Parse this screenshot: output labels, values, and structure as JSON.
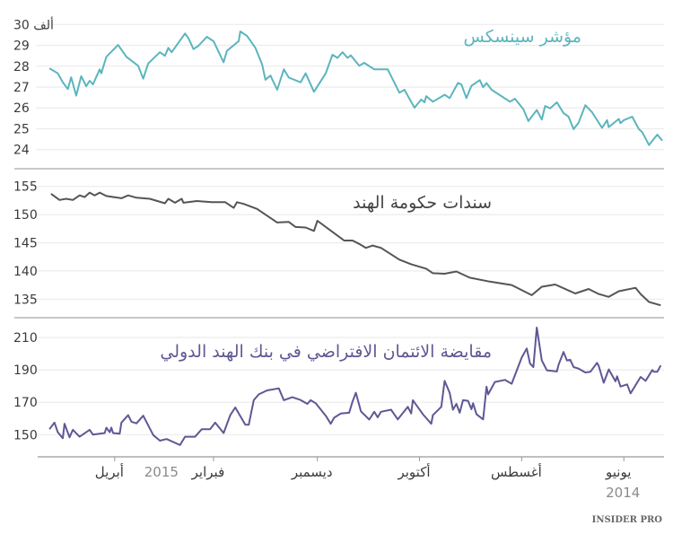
{
  "chart_data": [
    {
      "type": "line",
      "title": "مؤشر سينسكس",
      "color": "#5bb5bd",
      "ylim": [
        24,
        30
      ],
      "yticks": [
        "24",
        "25",
        "26",
        "27",
        "28",
        "29",
        "30 ألف"
      ],
      "ytick_values": [
        24,
        25,
        26,
        27,
        28,
        29,
        30
      ],
      "grid": true,
      "series": [
        {
          "x": [
            "2014-05-09",
            "2014-05-12",
            "2014-05-17",
            "2014-05-21",
            "2014-05-23",
            "2014-05-27",
            "2014-06-01",
            "2014-06-03",
            "2014-06-04",
            "2014-06-10",
            "2014-06-11",
            "2014-06-14",
            "2014-06-20",
            "2014-06-24",
            "2014-06-28",
            "2014-07-01",
            "2014-07-04",
            "2014-07-07",
            "2014-07-11",
            "2014-07-15",
            "2014-07-18",
            "2014-07-20",
            "2014-07-23",
            "2014-07-28",
            "2014-07-31",
            "2014-08-05",
            "2014-08-08",
            "2014-08-19",
            "2014-08-22",
            "2014-08-24",
            "2014-08-26",
            "2014-08-31",
            "2014-09-03",
            "2014-09-06",
            "2014-09-08",
            "2014-09-13",
            "2014-09-16",
            "2014-09-23",
            "2014-09-27",
            "2014-09-28",
            "2014-09-30",
            "2014-10-04",
            "2014-10-10",
            "2014-10-13",
            "2014-10-20",
            "2014-10-28",
            "2014-11-03",
            "2014-11-06",
            "2014-11-11",
            "2014-11-13",
            "2014-11-16",
            "2014-11-19",
            "2014-11-22",
            "2014-11-26",
            "2014-12-03",
            "2014-12-08",
            "2014-12-11",
            "2014-12-18",
            "2014-12-21",
            "2014-12-25",
            "2014-12-29",
            "2015-01-01",
            "2015-01-03",
            "2015-01-07",
            "2015-01-12",
            "2015-01-16",
            "2015-01-17",
            "2015-01-24",
            "2015-01-26",
            "2015-02-01",
            "2015-02-05",
            "2015-02-10",
            "2015-02-13",
            "2015-02-16",
            "2015-02-18",
            "2015-02-26",
            "2015-02-28",
            "2015-03-02",
            "2015-03-05",
            "2015-03-12",
            "2015-03-15",
            "2015-03-18",
            "2015-03-25",
            "2015-03-30",
            "2015-04-06",
            "2015-04-09",
            "2015-04-10",
            "2015-04-14",
            "2015-04-16",
            "2015-04-18",
            "2015-04-21",
            "2015-04-24",
            "2015-04-27",
            "2015-04-29",
            "2015-05-02",
            "2015-05-05",
            "2015-05-10"
          ],
          "y": [
            24.43,
            24.72,
            24.22,
            24.84,
            24.98,
            25.58,
            25.41,
            25.27,
            25.47,
            25.08,
            25.41,
            25.04,
            25.8,
            26.13,
            25.29,
            24.98,
            25.58,
            25.75,
            26.27,
            25.98,
            26.09,
            25.44,
            25.9,
            25.37,
            25.94,
            26.44,
            26.3,
            26.87,
            27.19,
            26.99,
            27.33,
            27.06,
            26.47,
            27.12,
            27.2,
            26.47,
            26.63,
            26.3,
            26.56,
            26.27,
            26.4,
            26.01,
            26.87,
            26.73,
            27.85,
            27.85,
            28.16,
            28.02,
            28.52,
            28.4,
            28.67,
            28.4,
            28.55,
            27.66,
            26.77,
            27.66,
            27.23,
            27.45,
            27.85,
            26.87,
            27.55,
            27.35,
            28.09,
            28.88,
            29.45,
            29.67,
            29.2,
            28.74,
            28.19,
            29.2,
            29.41,
            28.98,
            28.82,
            29.34,
            29.57,
            28.67,
            28.88,
            28.5,
            28.67,
            28.13,
            27.4,
            28.02,
            28.45,
            29.02,
            28.45,
            27.66,
            27.85,
            27.13,
            27.3,
            27.04,
            27.52,
            26.59,
            27.47,
            26.9,
            27.23,
            27.66,
            27.9
          ]
        }
      ]
    },
    {
      "type": "line",
      "title": "سندات حكومة الهند",
      "color": "#555555",
      "ylim": [
        135,
        155
      ],
      "yticks": [
        "135",
        "140",
        "145",
        "150",
        "155"
      ],
      "ytick_values": [
        135,
        140,
        145,
        150,
        155
      ],
      "grid": true,
      "series": [
        {
          "x": [
            "2014-05-10",
            "2014-05-17",
            "2014-05-22",
            "2014-05-25",
            "2014-06-04",
            "2014-06-10",
            "2014-06-16",
            "2014-06-22",
            "2014-06-30",
            "2014-07-12",
            "2014-07-20",
            "2014-07-26",
            "2014-08-07",
            "2014-08-20",
            "2014-09-01",
            "2014-09-09",
            "2014-09-16",
            "2014-09-23",
            "2014-09-27",
            "2014-10-06",
            "2014-10-13",
            "2014-10-24",
            "2014-10-29",
            "2014-11-02",
            "2014-11-06",
            "2014-11-10",
            "2014-11-15",
            "2014-12-01",
            "2014-12-03",
            "2014-12-08",
            "2014-12-14",
            "2014-12-18",
            "2014-12-25",
            "2015-01-06",
            "2015-01-14",
            "2015-01-18",
            "2015-01-20",
            "2015-01-25",
            "2015-02-02",
            "2015-02-11",
            "2015-02-19",
            "2015-02-20",
            "2015-02-24",
            "2015-02-28",
            "2015-03-02",
            "2015-03-11",
            "2015-03-19",
            "2015-03-24",
            "2015-03-28",
            "2015-04-06",
            "2015-04-10",
            "2015-04-13",
            "2015-04-16",
            "2015-04-19",
            "2015-04-22",
            "2015-04-26",
            "2015-04-30",
            "2015-05-04",
            "2015-05-09"
          ],
          "y": [
            133.9,
            134.5,
            135.9,
            137.0,
            136.4,
            135.4,
            135.9,
            136.8,
            136.0,
            137.6,
            137.2,
            135.7,
            137.5,
            138.1,
            138.8,
            139.9,
            139.5,
            139.6,
            140.4,
            141.2,
            142.0,
            144.1,
            144.5,
            144.1,
            144.8,
            145.4,
            145.4,
            148.9,
            147.1,
            147.7,
            147.8,
            148.7,
            148.6,
            151.0,
            151.9,
            152.2,
            151.2,
            152.2,
            152.2,
            152.4,
            152.1,
            152.8,
            152.1,
            152.8,
            152.0,
            152.8,
            153.0,
            153.4,
            152.9,
            153.3,
            153.9,
            153.4,
            153.9,
            153.1,
            153.4,
            152.6,
            152.8,
            152.6,
            153.7
          ]
        }
      ]
    },
    {
      "type": "line",
      "title": "مقايضة الائتمان الافتراضي في بنك الهند الدولي",
      "color": "#5e5894",
      "ylim": [
        150,
        210
      ],
      "yticks": [
        "150",
        "170",
        "190",
        "210"
      ],
      "ytick_values": [
        150,
        170,
        190,
        210
      ],
      "grid": true,
      "series": [
        {
          "x": [
            "2014-05-10",
            "2014-05-12",
            "2014-05-14",
            "2014-05-15",
            "2014-05-19",
            "2014-05-22",
            "2014-05-28",
            "2014-05-30",
            "2014-06-03",
            "2014-06-05",
            "2014-06-06",
            "2014-06-10",
            "2014-06-13",
            "2014-06-16",
            "2014-06-17",
            "2014-06-21",
            "2014-06-24",
            "2014-06-28",
            "2014-07-01",
            "2014-07-03",
            "2014-07-05",
            "2014-07-07",
            "2014-07-10",
            "2014-07-11",
            "2014-07-17",
            "2014-07-20",
            "2014-07-23",
            "2014-07-25",
            "2014-07-27",
            "2014-07-29",
            "2014-08-01",
            "2014-08-07",
            "2014-08-11",
            "2014-08-17",
            "2014-08-21",
            "2014-08-22",
            "2014-08-24",
            "2014-08-28",
            "2014-08-30",
            "2014-08-31",
            "2014-09-02",
            "2014-09-05",
            "2014-09-07",
            "2014-09-09",
            "2014-09-11",
            "2014-09-13",
            "2014-09-16",
            "2014-09-18",
            "2014-09-23",
            "2014-09-24",
            "2014-09-29",
            "2014-10-05",
            "2014-10-06",
            "2014-10-08",
            "2014-10-14",
            "2014-10-18",
            "2014-10-24",
            "2014-10-26",
            "2014-10-28",
            "2014-10-31",
            "2014-11-05",
            "2014-11-08",
            "2014-11-10",
            "2014-11-12",
            "2014-11-17",
            "2014-11-21",
            "2014-11-23",
            "2014-11-26",
            "2014-12-02",
            "2014-12-05",
            "2014-12-07",
            "2014-12-11",
            "2014-12-16",
            "2014-12-21",
            "2014-12-24",
            "2014-12-31",
            "2015-01-05",
            "2015-01-08",
            "2015-01-11",
            "2015-01-13",
            "2015-01-19",
            "2015-01-22",
            "2015-01-26",
            "2015-01-31",
            "2015-02-03",
            "2015-02-08",
            "2015-02-12",
            "2015-02-18",
            "2015-02-21",
            "2015-03-01",
            "2015-03-05",
            "2015-03-09",
            "2015-03-15",
            "2015-03-19",
            "2015-03-22",
            "2015-03-24",
            "2015-03-28",
            "2015-03-29",
            "2015-04-02",
            "2015-04-03",
            "2015-04-04",
            "2015-04-06",
            "2015-04-07",
            "2015-04-14",
            "2015-04-16",
            "2015-04-22",
            "2015-04-26",
            "2015-04-28",
            "2015-05-01",
            "2015-05-02",
            "2015-05-05",
            "2015-05-07",
            "2015-05-10"
          ],
          "y": [
            192.7,
            188.8,
            188.8,
            189.9,
            183.2,
            185.6,
            175.5,
            181.0,
            179.7,
            186.0,
            182.9,
            190.3,
            182.0,
            192.5,
            194.3,
            188.8,
            188.4,
            190.8,
            191.7,
            196.2,
            195.8,
            201.0,
            193.0,
            189.0,
            189.7,
            195.8,
            216.1,
            191.7,
            193.9,
            203.2,
            197.6,
            181.4,
            183.8,
            182.5,
            174.9,
            179.6,
            159.4,
            162.6,
            169.4,
            165.7,
            170.9,
            171.3,
            163.5,
            169.0,
            165.4,
            175.9,
            183.2,
            167.2,
            162.0,
            156.7,
            162.6,
            171.3,
            163.1,
            167.2,
            159.4,
            165.4,
            164.1,
            160.7,
            164.1,
            159.3,
            164.4,
            175.9,
            170.5,
            163.5,
            163.1,
            160.4,
            156.7,
            161.7,
            169.4,
            171.3,
            169.0,
            171.4,
            173.1,
            171.3,
            178.6,
            177.3,
            174.9,
            171.3,
            156.1,
            156.1,
            166.8,
            162.0,
            151.0,
            157.4,
            153.4,
            153.4,
            148.7,
            148.7,
            143.6,
            147.3,
            146.3,
            149.7,
            161.7,
            157.0,
            158.0,
            162.0,
            157.4,
            150.6,
            151.0,
            154.3,
            151.5,
            154.3,
            151.0,
            150.0,
            153.0,
            148.7,
            153.0,
            148.4,
            156.7,
            147.8,
            151.5,
            157.4,
            153.4
          ]
        }
      ]
    }
  ],
  "x_axis": {
    "direction": "right-to-left",
    "xlim": [
      "2014-05-08",
      "2015-05-17"
    ],
    "ticks": [
      {
        "date": "2014-06-01",
        "label": "يونيو",
        "year": "2014"
      },
      {
        "date": "2014-08-01",
        "label": "أغسطس"
      },
      {
        "date": "2014-10-01",
        "label": "أكتوبر"
      },
      {
        "date": "2014-12-01",
        "label": "ديسمبر"
      },
      {
        "date": "2015-02-01",
        "label": "فبراير"
      },
      {
        "date": "2015-04-01",
        "label": "أبريل",
        "year_before": "2015"
      }
    ]
  },
  "logo": "INSIDER PRO"
}
